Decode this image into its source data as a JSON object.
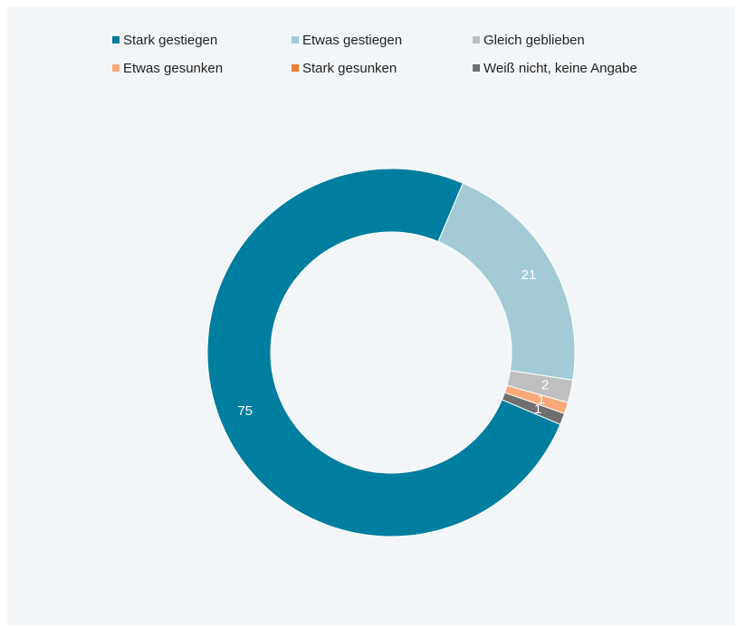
{
  "chart_data": {
    "type": "donut",
    "categories": [
      "Stark gestiegen",
      "Etwas gestiegen",
      "Gleich geblieben",
      "Etwas gesunken",
      "Stark gesunken",
      "Weiß nicht, keine Angabe"
    ],
    "values": [
      75,
      21,
      2,
      1,
      0,
      1
    ],
    "colors": [
      "#007e9f",
      "#a3cbd5",
      "#bfbfbf",
      "#f9a979",
      "#f07d2d",
      "#6f6f6f"
    ],
    "legend": "top"
  }
}
